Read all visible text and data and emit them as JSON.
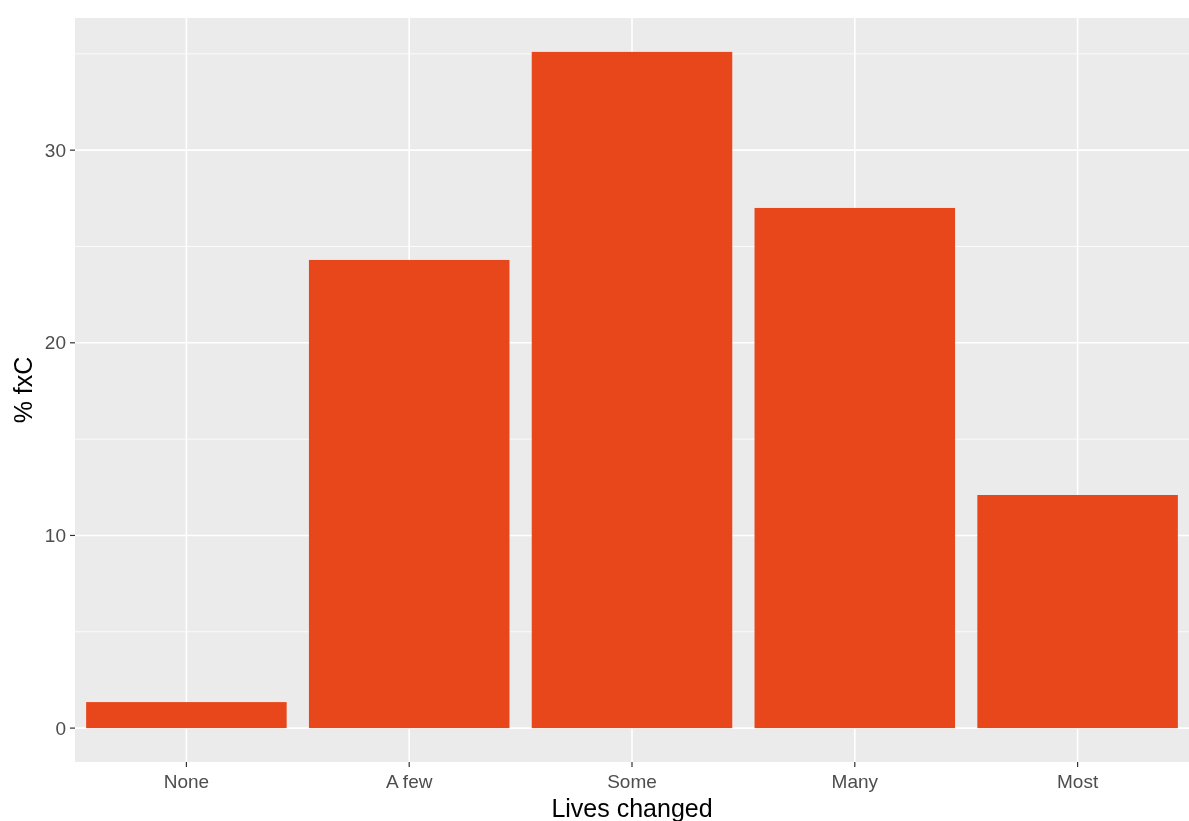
{
  "chart_data": {
    "type": "bar",
    "xlabel": "Lives changed",
    "ylabel": "% fxC",
    "categories": [
      "None",
      "A few",
      "Some",
      "Many",
      "Most"
    ],
    "values": [
      1.35,
      24.3,
      35.1,
      27.0,
      12.1
    ],
    "color": "#e8461b",
    "ylim": [
      -1.76,
      36.86
    ],
    "yticks": [
      0,
      {
        "value": 5,
        "label": null
      },
      10,
      {
        "value": 15,
        "label": null
      },
      20,
      {
        "value": 25,
        "label": null
      },
      30,
      {
        "value": 35,
        "label": null
      }
    ],
    "grid": true
  }
}
